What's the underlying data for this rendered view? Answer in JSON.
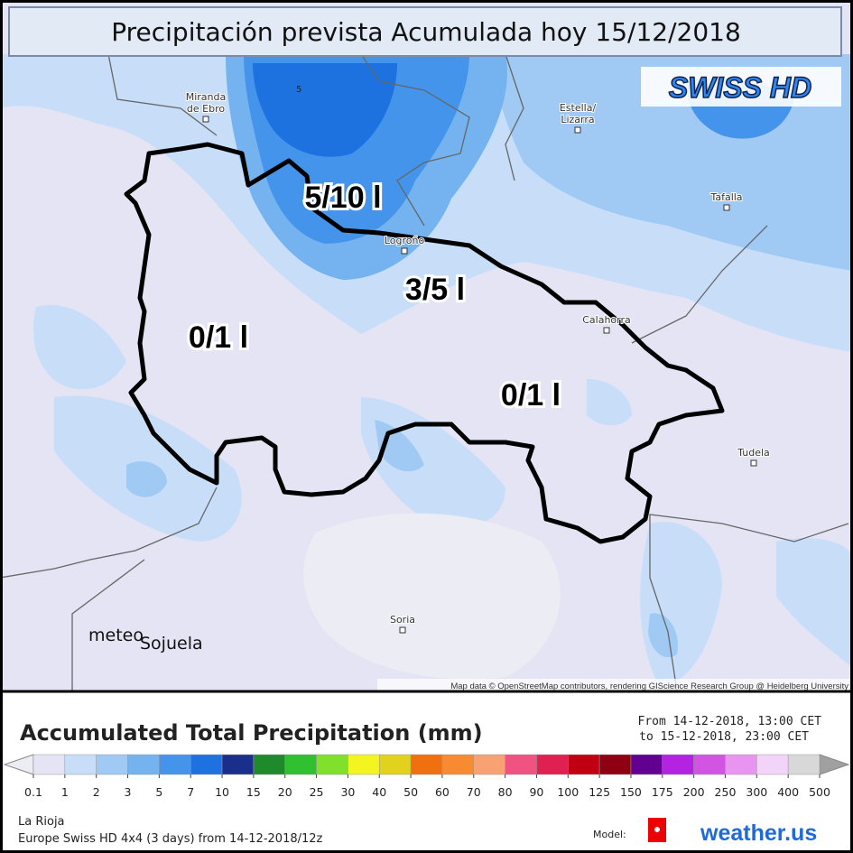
{
  "header": {
    "title": "Precipitación prevista Acumulada hoy 15/12/2018",
    "badge": "SWISS HD"
  },
  "map": {
    "places": [
      {
        "lines": [
          "Miranda",
          "de Ebro"
        ]
      },
      {
        "lines": [
          "Estella/",
          "Lizarra"
        ]
      },
      {
        "lines": [
          "Tafalla"
        ]
      },
      {
        "lines": [
          "Logroño"
        ]
      },
      {
        "lines": [
          "Calahorra"
        ]
      },
      {
        "lines": [
          "Tudela"
        ]
      },
      {
        "lines": [
          "Soria"
        ]
      }
    ],
    "contour_label": "5",
    "zone_labels": [
      "5/10 l",
      "3/5 l",
      "0/1 l",
      "0/1 l"
    ],
    "watermark": [
      "meteo",
      "Sojuela"
    ],
    "attribution": "Map data © OpenStreetMap contributors, rendering GIScience Research Group @ Heidelberg University"
  },
  "legend": {
    "title": "Accumulated Total Precipitation (mm)",
    "from": "From 14-12-2018, 13:00 CET",
    "to": "to 15-12-2018, 23:00 CET",
    "ticks": [
      0.1,
      1,
      2,
      3,
      5,
      7,
      10,
      15,
      20,
      25,
      30,
      40,
      50,
      60,
      70,
      80,
      90,
      100,
      125,
      150,
      175,
      200,
      250,
      300,
      400,
      500
    ],
    "colors": [
      "#e4e4f4",
      "#c8def8",
      "#a0caf4",
      "#74b2f0",
      "#4494ec",
      "#1e72e0",
      "#1a2e8c",
      "#1e8a2c",
      "#30c030",
      "#80e02c",
      "#f4f420",
      "#e2d21e",
      "#f07010",
      "#f88a32",
      "#f8a274",
      "#f05282",
      "#e02050",
      "#c00012",
      "#8e0012",
      "#620092",
      "#b422e2",
      "#d254e2",
      "#ea94f2",
      "#f2d4f8",
      "#d8d8d8"
    ],
    "under_color": "#ececf4",
    "over_color": "#a0a0a0"
  },
  "footer": {
    "region": "La Rioja",
    "run": "Europe Swiss HD 4x4 (3 days) from 14-12-2018/12z",
    "model": "Model:",
    "brand": "weather.us"
  }
}
